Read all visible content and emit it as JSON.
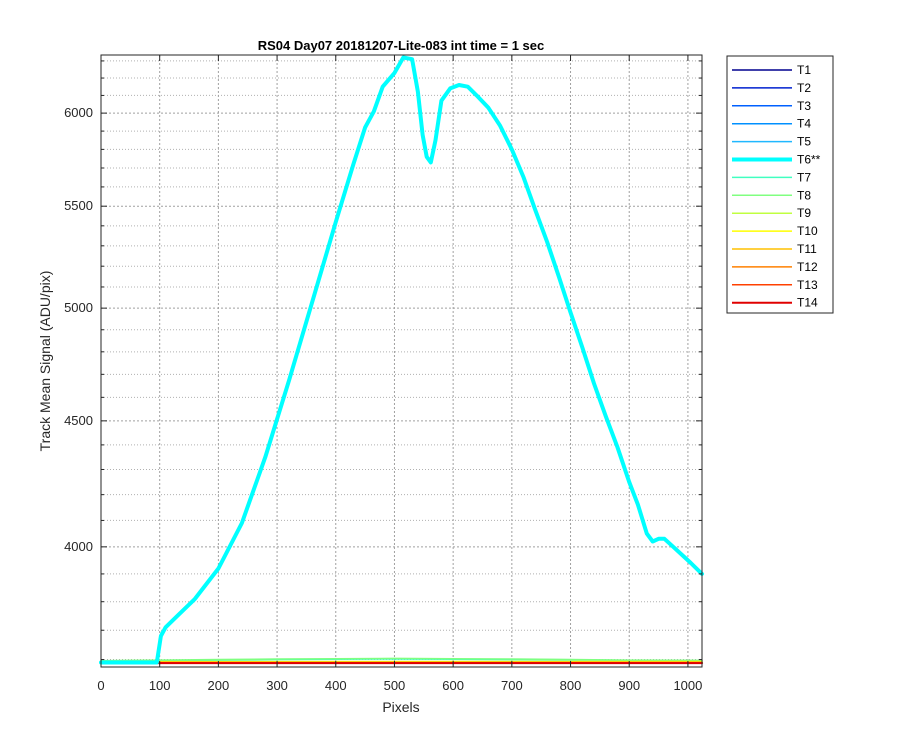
{
  "chart_data": {
    "type": "line",
    "title": "RS04 Day07 20181207-Lite-083 int time = 1 sec",
    "xlabel": "Pixels",
    "ylabel": "Track Mean Signal (ADU/pix)",
    "xlim": [
      0,
      1024
    ],
    "ylim": [
      3575,
      6335
    ],
    "xticks": [
      0,
      100,
      200,
      300,
      400,
      500,
      600,
      700,
      800,
      900,
      1000
    ],
    "yticks": [
      4000,
      4500,
      5000,
      5500,
      6000
    ],
    "y_scale": "log",
    "grid": true,
    "minor_grid": true,
    "legend_position": "outside-top-right",
    "series": [
      {
        "name": "T1",
        "color": "#00008f",
        "lw": 1.5,
        "x": [
          0,
          1024
        ],
        "y": [
          3590,
          3590
        ]
      },
      {
        "name": "T2",
        "color": "#0020cf",
        "lw": 1.5,
        "x": [
          0,
          1024
        ],
        "y": [
          3590,
          3590
        ]
      },
      {
        "name": "T3",
        "color": "#0060ff",
        "lw": 1.5,
        "x": [
          0,
          1024
        ],
        "y": [
          3590,
          3590
        ]
      },
      {
        "name": "T4",
        "color": "#0090ff",
        "lw": 1.5,
        "x": [
          0,
          1024
        ],
        "y": [
          3590,
          3590
        ]
      },
      {
        "name": "T5",
        "color": "#20b8ff",
        "lw": 1.5,
        "x": [
          0,
          1024
        ],
        "y": [
          3590,
          3590
        ]
      },
      {
        "name": "T6**",
        "color": "#00ffff",
        "lw": 4,
        "x": [
          0,
          95,
          102,
          110,
          130,
          160,
          200,
          240,
          280,
          320,
          360,
          400,
          430,
          450,
          465,
          480,
          500,
          515,
          530,
          540,
          548,
          555,
          562,
          570,
          580,
          595,
          610,
          625,
          640,
          660,
          680,
          700,
          720,
          740,
          760,
          780,
          800,
          820,
          840,
          860,
          880,
          900,
          915,
          930,
          940,
          950,
          960,
          975,
          990,
          1005,
          1024
        ],
        "y": [
          3590,
          3590,
          3680,
          3710,
          3750,
          3810,
          3920,
          4090,
          4350,
          4670,
          5030,
          5420,
          5720,
          5920,
          6010,
          6150,
          6230,
          6320,
          6310,
          6120,
          5880,
          5760,
          5730,
          5850,
          6070,
          6140,
          6160,
          6150,
          6100,
          6030,
          5930,
          5800,
          5650,
          5480,
          5320,
          5150,
          4980,
          4820,
          4660,
          4520,
          4390,
          4250,
          4160,
          4050,
          4020,
          4030,
          4030,
          4000,
          3970,
          3940,
          3900
        ]
      },
      {
        "name": "T7",
        "color": "#40ffc0",
        "lw": 1.5,
        "x": [
          0,
          100,
          200,
          300,
          400,
          500,
          600,
          700,
          800,
          900,
          1024
        ],
        "y": [
          3595,
          3596,
          3598,
          3600,
          3601,
          3602,
          3601,
          3600,
          3599,
          3597,
          3596
        ]
      },
      {
        "name": "T8",
        "color": "#80ff80",
        "lw": 1.5,
        "x": [
          0,
          100,
          200,
          300,
          400,
          500,
          600,
          700,
          800,
          900,
          1024
        ],
        "y": [
          3596,
          3598,
          3600,
          3602,
          3603,
          3604,
          3603,
          3602,
          3600,
          3598,
          3597
        ]
      },
      {
        "name": "T9",
        "color": "#c0ff40",
        "lw": 1.5,
        "x": [
          0,
          1024
        ],
        "y": [
          3593,
          3594
        ]
      },
      {
        "name": "T10",
        "color": "#ffff00",
        "lw": 1.5,
        "x": [
          0,
          1024
        ],
        "y": [
          3592,
          3592
        ]
      },
      {
        "name": "T11",
        "color": "#ffc000",
        "lw": 1.5,
        "x": [
          0,
          1024
        ],
        "y": [
          3591,
          3591
        ]
      },
      {
        "name": "T12",
        "color": "#ff8000",
        "lw": 1.5,
        "x": [
          0,
          1024
        ],
        "y": [
          3590,
          3590
        ]
      },
      {
        "name": "T13",
        "color": "#ff4000",
        "lw": 1.5,
        "x": [
          0,
          1024
        ],
        "y": [
          3589,
          3589
        ]
      },
      {
        "name": "T14",
        "color": "#e00000",
        "lw": 2,
        "x": [
          0,
          1024
        ],
        "y": [
          3588,
          3588
        ]
      }
    ]
  }
}
